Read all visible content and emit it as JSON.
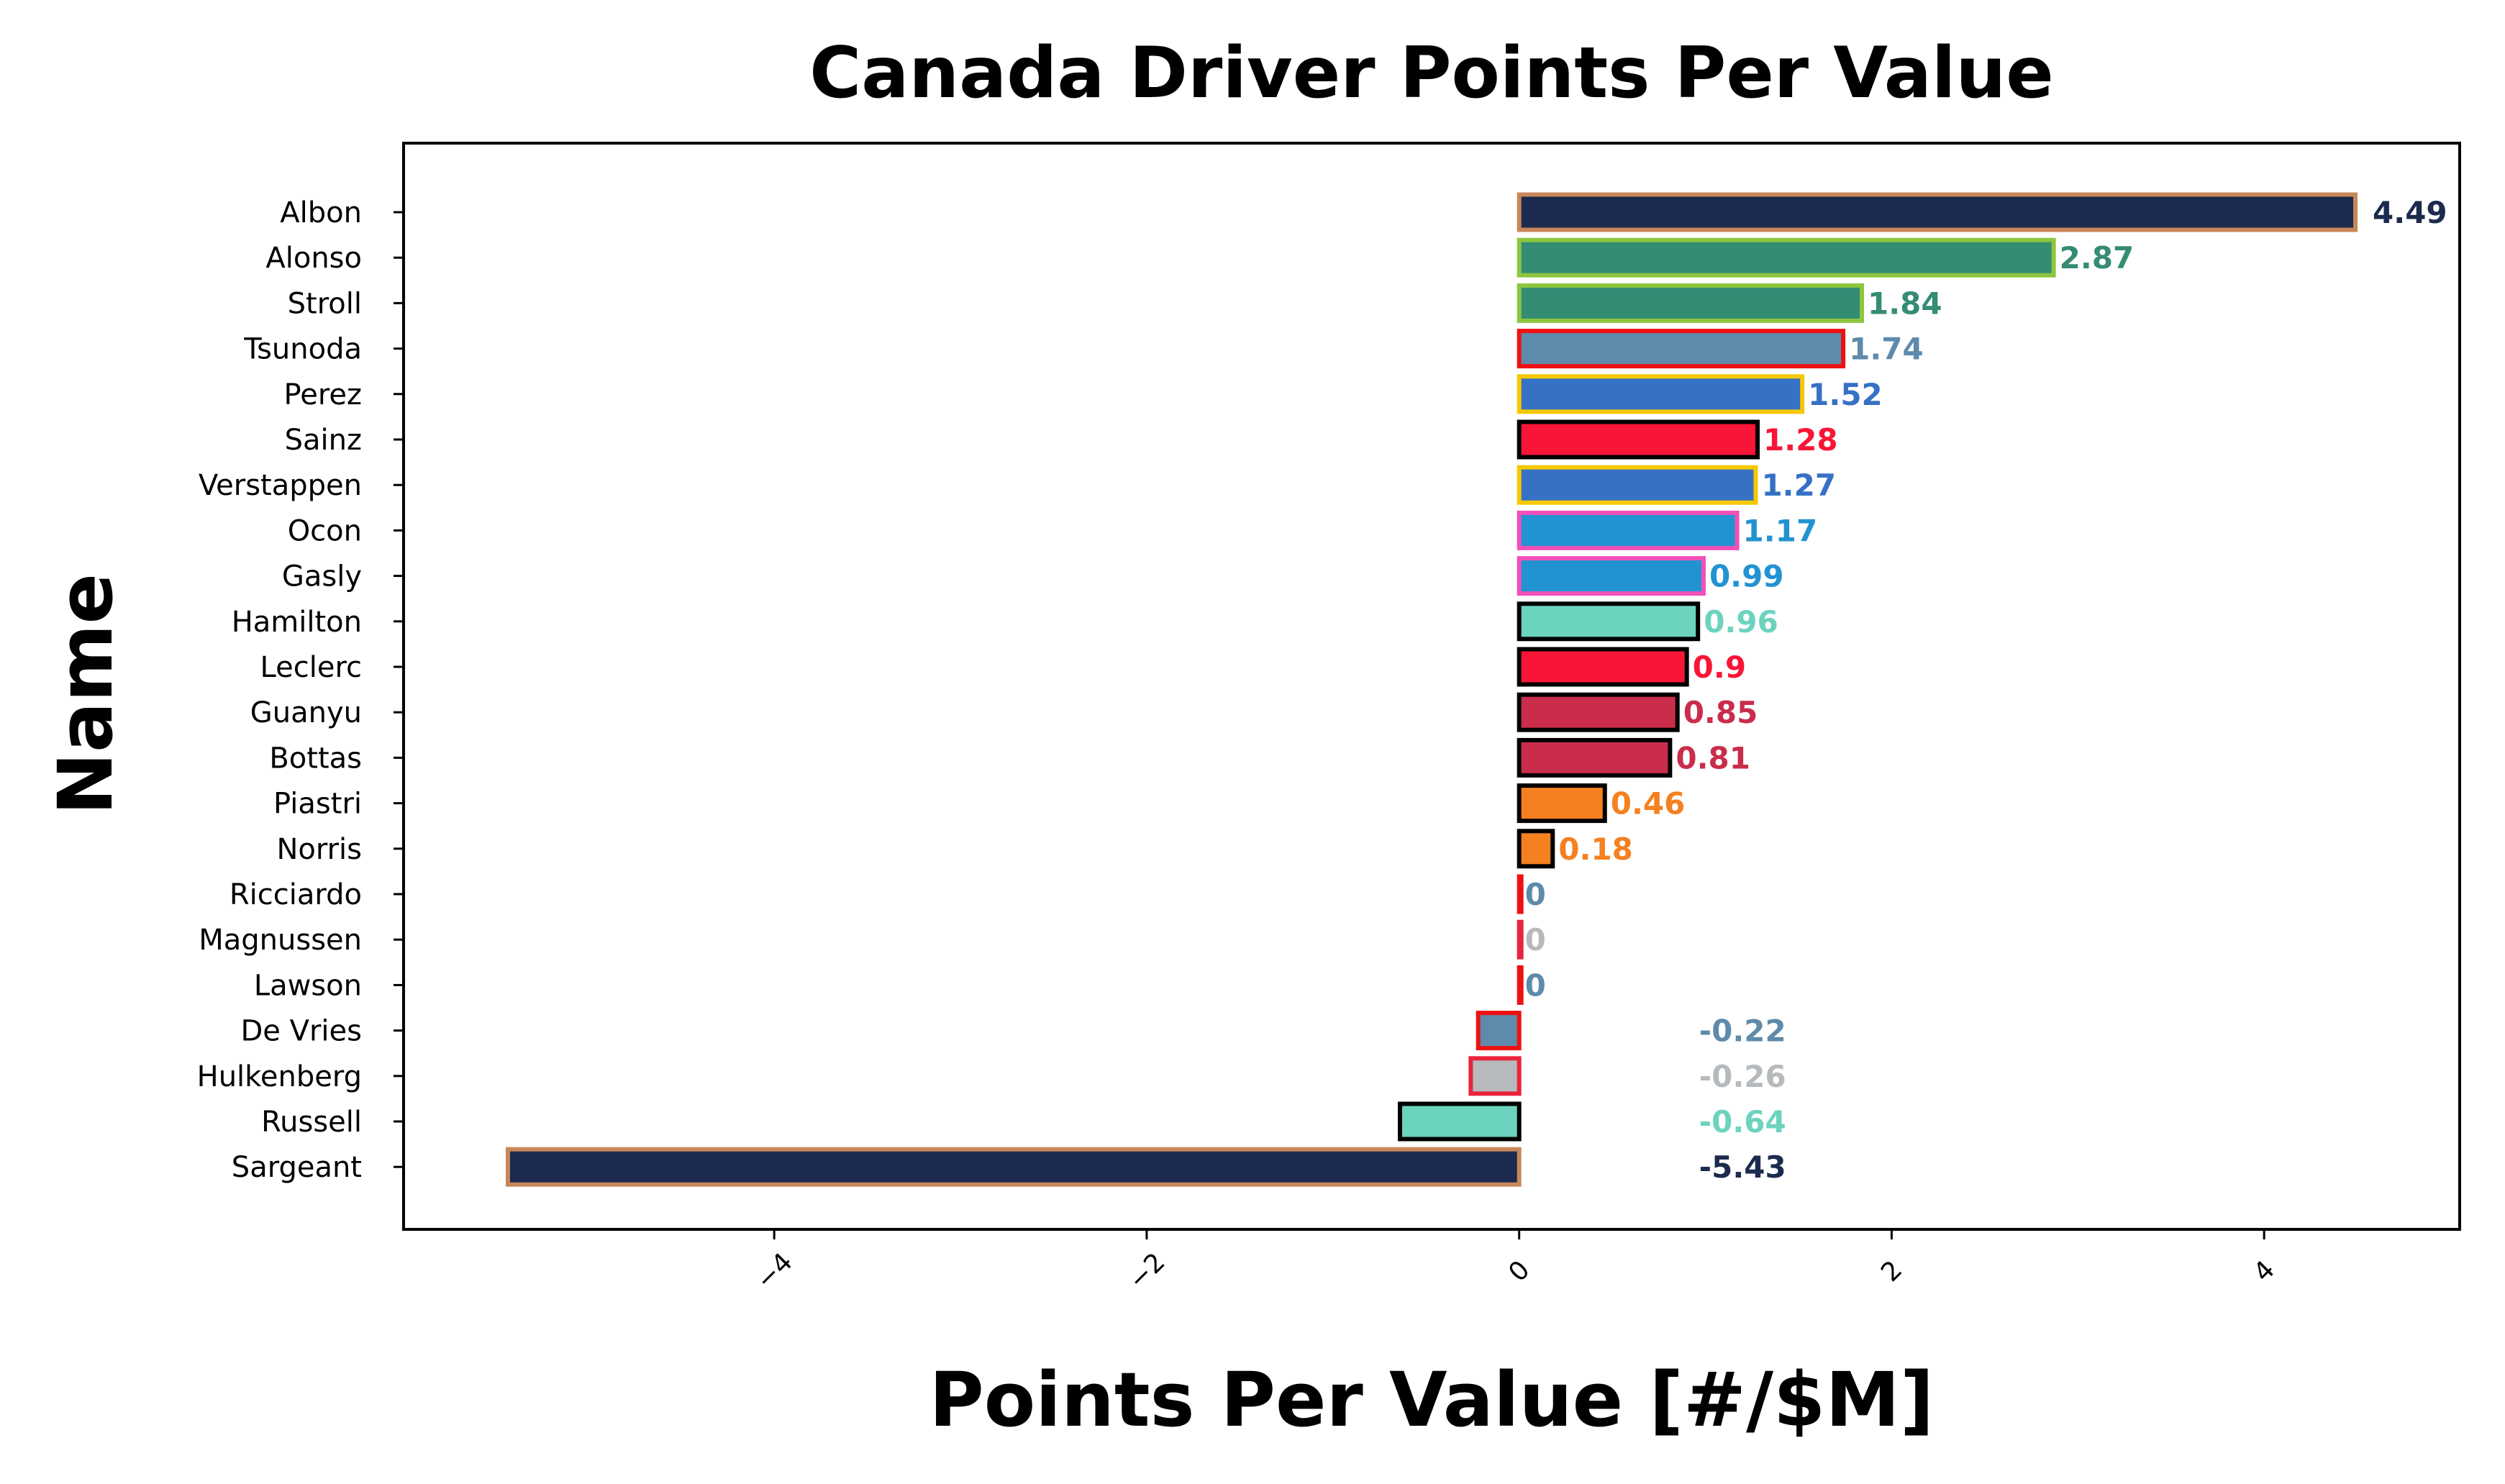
{
  "chart_data": {
    "type": "bar",
    "orientation": "horizontal",
    "title": "Canada Driver Points Per Value",
    "xlabel": "Points Per Value [#/$M]",
    "ylabel": "Name",
    "xlim": [
      -5.99,
      5.05
    ],
    "xticks": [
      -4,
      -2,
      0,
      2,
      4
    ],
    "xtick_labels": [
      "−4",
      "−2",
      "0",
      "2",
      "4"
    ],
    "grid": false,
    "legend": "none",
    "categories": [
      "Albon",
      "Alonso",
      "Stroll",
      "Tsunoda",
      "Perez",
      "Sainz",
      "Verstappen",
      "Ocon",
      "Gasly",
      "Hamilton",
      "Leclerc",
      "Guanyu",
      "Bottas",
      "Piastri",
      "Norris",
      "Ricciardo",
      "Magnussen",
      "Lawson",
      "De Vries",
      "Hulkenberg",
      "Russell",
      "Sargeant"
    ],
    "values": [
      4.49,
      2.87,
      1.84,
      1.74,
      1.52,
      1.28,
      1.27,
      1.17,
      0.99,
      0.96,
      0.9,
      0.85,
      0.81,
      0.46,
      0.18,
      0,
      0,
      0,
      -0.22,
      -0.26,
      -0.64,
      -5.43
    ],
    "value_labels": [
      "4.49",
      "2.87",
      "1.84",
      "1.74",
      "1.52",
      "1.28",
      "1.27",
      "1.17",
      "0.99",
      "0.96",
      "0.9",
      "0.85",
      "0.81",
      "0.46",
      "0.18",
      "0",
      "0",
      "0",
      "-0.22",
      "-0.26",
      "-0.64",
      "-5.43"
    ],
    "fill_colors": [
      "#1b2a4e",
      "#358c74",
      "#358c74",
      "#5e8aab",
      "#3671c6",
      "#f91536",
      "#3671c6",
      "#2293d1",
      "#2293d1",
      "#6cd3bf",
      "#f91536",
      "#c92d4b",
      "#c92d4b",
      "#f58020",
      "#f58020",
      "#5e8aab",
      "#b6babd",
      "#5e8aab",
      "#5e8aab",
      "#b6babd",
      "#6cd3bf",
      "#1b2a4e"
    ],
    "edge_colors": [
      "#c8875a",
      "#8dc63f",
      "#8dc63f",
      "#ee1111",
      "#f5c800",
      "#000000",
      "#f5c800",
      "#f050b8",
      "#f050b8",
      "#000000",
      "#000000",
      "#000000",
      "#000000",
      "#000000",
      "#000000",
      "#ee1111",
      "#e8243c",
      "#ee1111",
      "#ee1111",
      "#e8243c",
      "#000000",
      "#c8875a"
    ]
  }
}
